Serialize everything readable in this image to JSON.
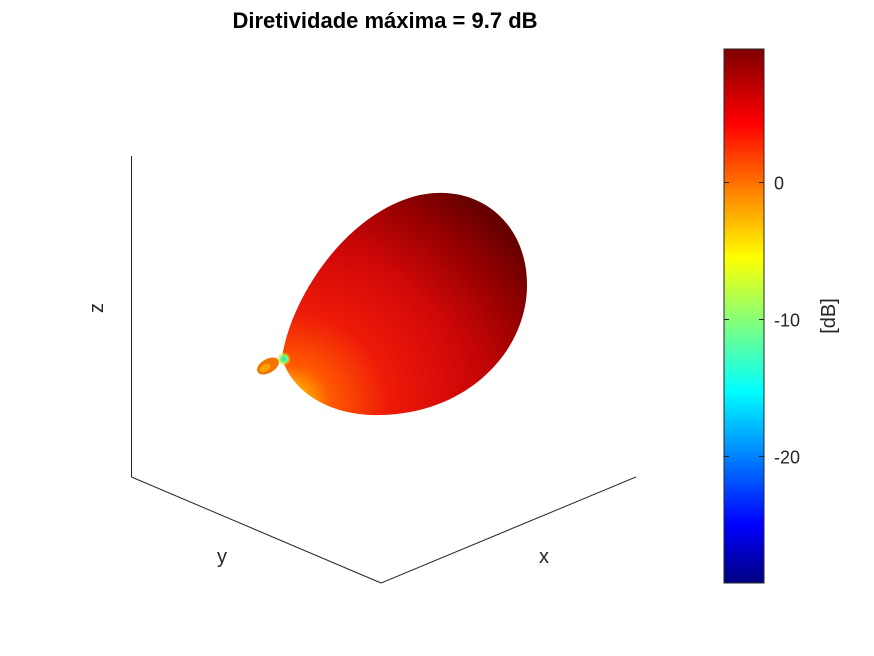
{
  "chart_data": {
    "type": "surface",
    "title": "Diretividade máxima = 9.7 dB",
    "xlabel": "x",
    "ylabel": "y",
    "zlabel": "z",
    "colorbar": {
      "label": "[dB]",
      "colormap": "jet",
      "range": [
        -29.3,
        9.7
      ],
      "ticks": [
        0,
        -10,
        -20
      ],
      "tick_labels": [
        "0",
        "-10",
        "-20"
      ]
    },
    "max_directivity_db": 9.7,
    "colors": {
      "main_lobe": "#e40b0b",
      "main_lobe_dark": "#8a0000",
      "feed_point": "#ffe000",
      "null_point": "#20e0e0",
      "back_lobe": "#f07a00"
    }
  }
}
